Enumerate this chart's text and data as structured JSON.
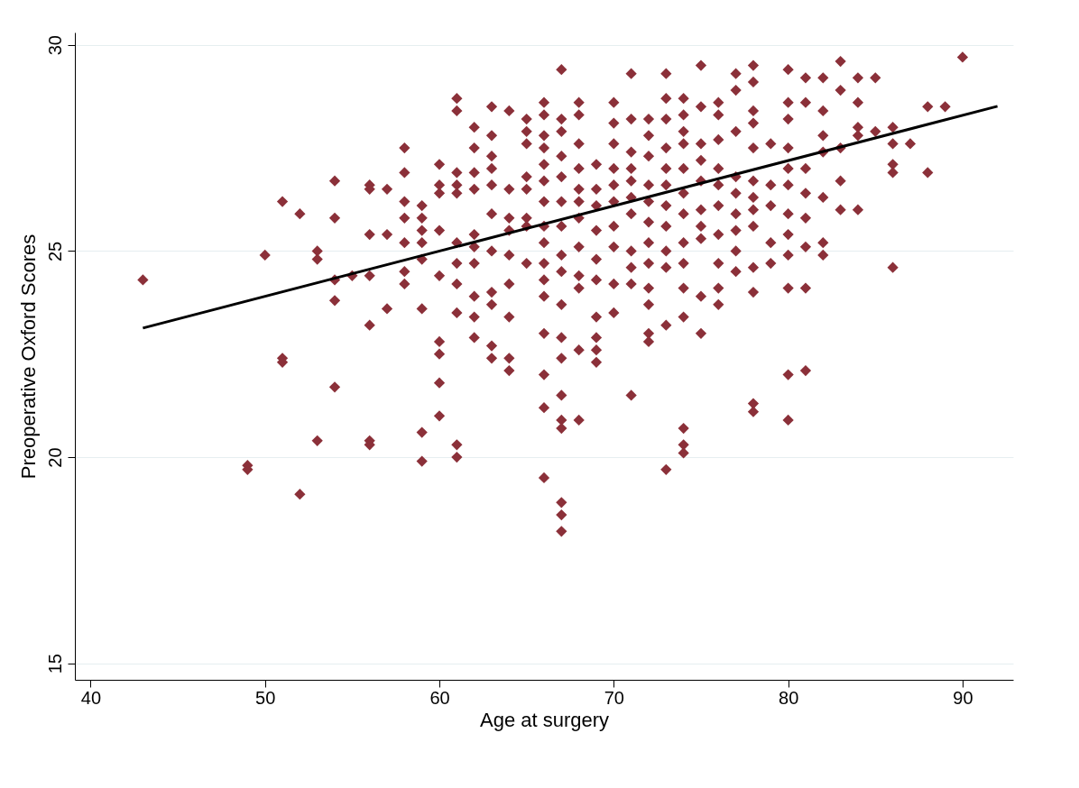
{
  "chart_data": {
    "type": "scatter",
    "xlabel": "Age at surgery",
    "ylabel": "Preoperative Oxford Scores",
    "xlim": [
      39.1,
      92.9
    ],
    "ylim": [
      14.6,
      30.3
    ],
    "xticks": [
      40,
      50,
      60,
      70,
      80,
      90
    ],
    "yticks": [
      15,
      20,
      25,
      30
    ],
    "grid": "y",
    "series": [
      {
        "color": "#8b3039",
        "marker": "diamond",
        "x": [
          43,
          49,
          49,
          50,
          51,
          51,
          51,
          52,
          52,
          53,
          53,
          53,
          54,
          54,
          54,
          54,
          54,
          55,
          56,
          56,
          56,
          56,
          56,
          56,
          56,
          57,
          57,
          57,
          58,
          58,
          58,
          58,
          58,
          58,
          58,
          59,
          59,
          59,
          59,
          59,
          59,
          59,
          59,
          60,
          60,
          60,
          60,
          60,
          60,
          60,
          60,
          60,
          61,
          61,
          61,
          61,
          61,
          61,
          61,
          61,
          61,
          61,
          61,
          62,
          62,
          62,
          62,
          62,
          62,
          62,
          62,
          62,
          62,
          63,
          63,
          63,
          63,
          63,
          63,
          63,
          63,
          63,
          63,
          63,
          64,
          64,
          64,
          64,
          64,
          64,
          64,
          64,
          64,
          65,
          65,
          65,
          65,
          65,
          65,
          65,
          65,
          66,
          66,
          66,
          66,
          66,
          66,
          66,
          66,
          66,
          66,
          66,
          66,
          66,
          66,
          66,
          66,
          67,
          67,
          67,
          67,
          67,
          67,
          67,
          67,
          67,
          67,
          67,
          67,
          67,
          67,
          67,
          67,
          67,
          67,
          68,
          68,
          68,
          68,
          68,
          68,
          68,
          68,
          68,
          68,
          68,
          68,
          69,
          69,
          69,
          69,
          69,
          69,
          69,
          69,
          69,
          69,
          70,
          70,
          70,
          70,
          70,
          70,
          70,
          70,
          70,
          70,
          71,
          71,
          71,
          71,
          71,
          71,
          71,
          71,
          71,
          71,
          71,
          72,
          72,
          72,
          72,
          72,
          72,
          72,
          72,
          72,
          72,
          72,
          72,
          73,
          73,
          73,
          73,
          73,
          73,
          73,
          73,
          73,
          73,
          73,
          73,
          74,
          74,
          74,
          74,
          74,
          74,
          74,
          74,
          74,
          74,
          74,
          74,
          74,
          74,
          75,
          75,
          75,
          75,
          75,
          75,
          75,
          75,
          75,
          75,
          76,
          76,
          76,
          76,
          76,
          76,
          76,
          76,
          76,
          76,
          77,
          77,
          77,
          77,
          77,
          77,
          77,
          77,
          77,
          78,
          78,
          78,
          78,
          78,
          78,
          78,
          78,
          78,
          78,
          78,
          78,
          78,
          79,
          79,
          79,
          79,
          79,
          80,
          80,
          80,
          80,
          80,
          80,
          80,
          80,
          80,
          80,
          80,
          80,
          81,
          81,
          81,
          81,
          81,
          81,
          81,
          81,
          82,
          82,
          82,
          82,
          82,
          82,
          82,
          83,
          83,
          83,
          83,
          83,
          84,
          84,
          84,
          84,
          84,
          85,
          85,
          86,
          86,
          86,
          86,
          86,
          87,
          88,
          88,
          89,
          90
        ],
        "values": [
          24.3,
          19.8,
          19.7,
          24.9,
          26.2,
          22.4,
          22.3,
          25.9,
          19.1,
          25.0,
          24.8,
          20.4,
          26.7,
          25.8,
          24.3,
          23.8,
          21.7,
          24.4,
          26.6,
          26.5,
          25.4,
          24.4,
          23.2,
          20.4,
          20.3,
          26.5,
          25.4,
          23.6,
          27.5,
          26.9,
          26.2,
          25.8,
          25.2,
          24.5,
          24.2,
          26.1,
          25.8,
          25.5,
          25.2,
          24.8,
          23.6,
          20.6,
          19.9,
          27.1,
          26.6,
          26.4,
          25.5,
          24.4,
          22.8,
          22.5,
          21.8,
          21.0,
          28.7,
          28.4,
          26.9,
          26.6,
          26.4,
          25.2,
          24.7,
          24.2,
          23.5,
          20.3,
          20.0,
          28.0,
          27.5,
          26.9,
          26.5,
          25.4,
          25.1,
          24.7,
          23.9,
          23.4,
          22.9,
          28.5,
          27.8,
          27.3,
          27.0,
          26.6,
          25.9,
          25.0,
          24.0,
          23.7,
          22.7,
          22.4,
          28.4,
          26.5,
          25.8,
          25.5,
          24.9,
          24.2,
          23.4,
          22.4,
          22.1,
          28.2,
          27.9,
          27.6,
          26.8,
          26.5,
          25.8,
          25.6,
          24.7,
          28.6,
          28.3,
          27.8,
          27.5,
          27.1,
          26.7,
          26.2,
          25.6,
          25.2,
          24.7,
          24.3,
          23.9,
          23.0,
          22.0,
          21.2,
          19.5,
          29.4,
          28.2,
          27.9,
          27.3,
          26.8,
          26.2,
          25.6,
          24.9,
          24.5,
          23.7,
          22.9,
          22.4,
          21.5,
          20.9,
          20.7,
          18.9,
          18.6,
          18.2,
          28.6,
          28.3,
          27.6,
          27.0,
          26.5,
          26.2,
          25.8,
          25.1,
          24.4,
          24.1,
          22.6,
          20.9,
          27.1,
          26.5,
          26.1,
          25.5,
          24.8,
          24.3,
          23.4,
          22.9,
          22.6,
          22.3,
          28.6,
          28.1,
          27.6,
          27.0,
          26.6,
          26.2,
          25.6,
          25.1,
          24.2,
          23.5,
          29.3,
          28.2,
          27.4,
          27.0,
          26.7,
          26.3,
          25.9,
          25.0,
          24.6,
          24.2,
          21.5,
          28.2,
          27.8,
          27.3,
          26.6,
          26.2,
          25.7,
          25.2,
          24.7,
          24.1,
          23.7,
          23.0,
          22.8,
          29.3,
          28.7,
          28.2,
          27.5,
          27.0,
          26.6,
          26.1,
          25.6,
          25.0,
          24.6,
          23.2,
          19.7,
          28.7,
          28.3,
          27.9,
          27.6,
          27.0,
          26.4,
          25.9,
          25.2,
          24.7,
          24.1,
          23.4,
          20.7,
          20.3,
          20.1,
          29.5,
          28.5,
          27.6,
          27.2,
          26.7,
          26.0,
          25.6,
          25.3,
          23.9,
          23.0,
          28.6,
          28.3,
          27.7,
          27.0,
          26.6,
          26.1,
          25.4,
          24.7,
          24.1,
          23.7,
          29.3,
          28.9,
          27.9,
          26.8,
          26.4,
          25.9,
          25.5,
          25.0,
          24.5,
          29.5,
          29.1,
          28.4,
          28.1,
          27.5,
          26.7,
          26.3,
          26.0,
          25.6,
          24.6,
          24.0,
          21.3,
          21.1,
          27.6,
          26.6,
          26.1,
          25.2,
          24.7,
          29.4,
          28.6,
          28.2,
          27.5,
          27.0,
          26.6,
          25.9,
          25.4,
          24.9,
          24.1,
          22.0,
          20.9,
          29.2,
          28.6,
          27.0,
          26.4,
          25.8,
          25.1,
          24.1,
          22.1,
          29.2,
          28.4,
          27.8,
          27.4,
          26.3,
          25.2,
          24.9,
          29.6,
          28.9,
          27.5,
          26.7,
          26.0,
          29.2,
          28.6,
          28.0,
          27.8,
          26.0,
          29.2,
          27.9,
          28.0,
          27.6,
          27.1,
          26.9,
          24.6,
          27.6,
          28.5,
          26.9,
          28.5,
          29.7
        ]
      },
      {
        "type": "line",
        "marker": "none",
        "color": "#000000",
        "x": [
          43,
          92
        ],
        "values": [
          23.13,
          28.51
        ]
      }
    ]
  }
}
